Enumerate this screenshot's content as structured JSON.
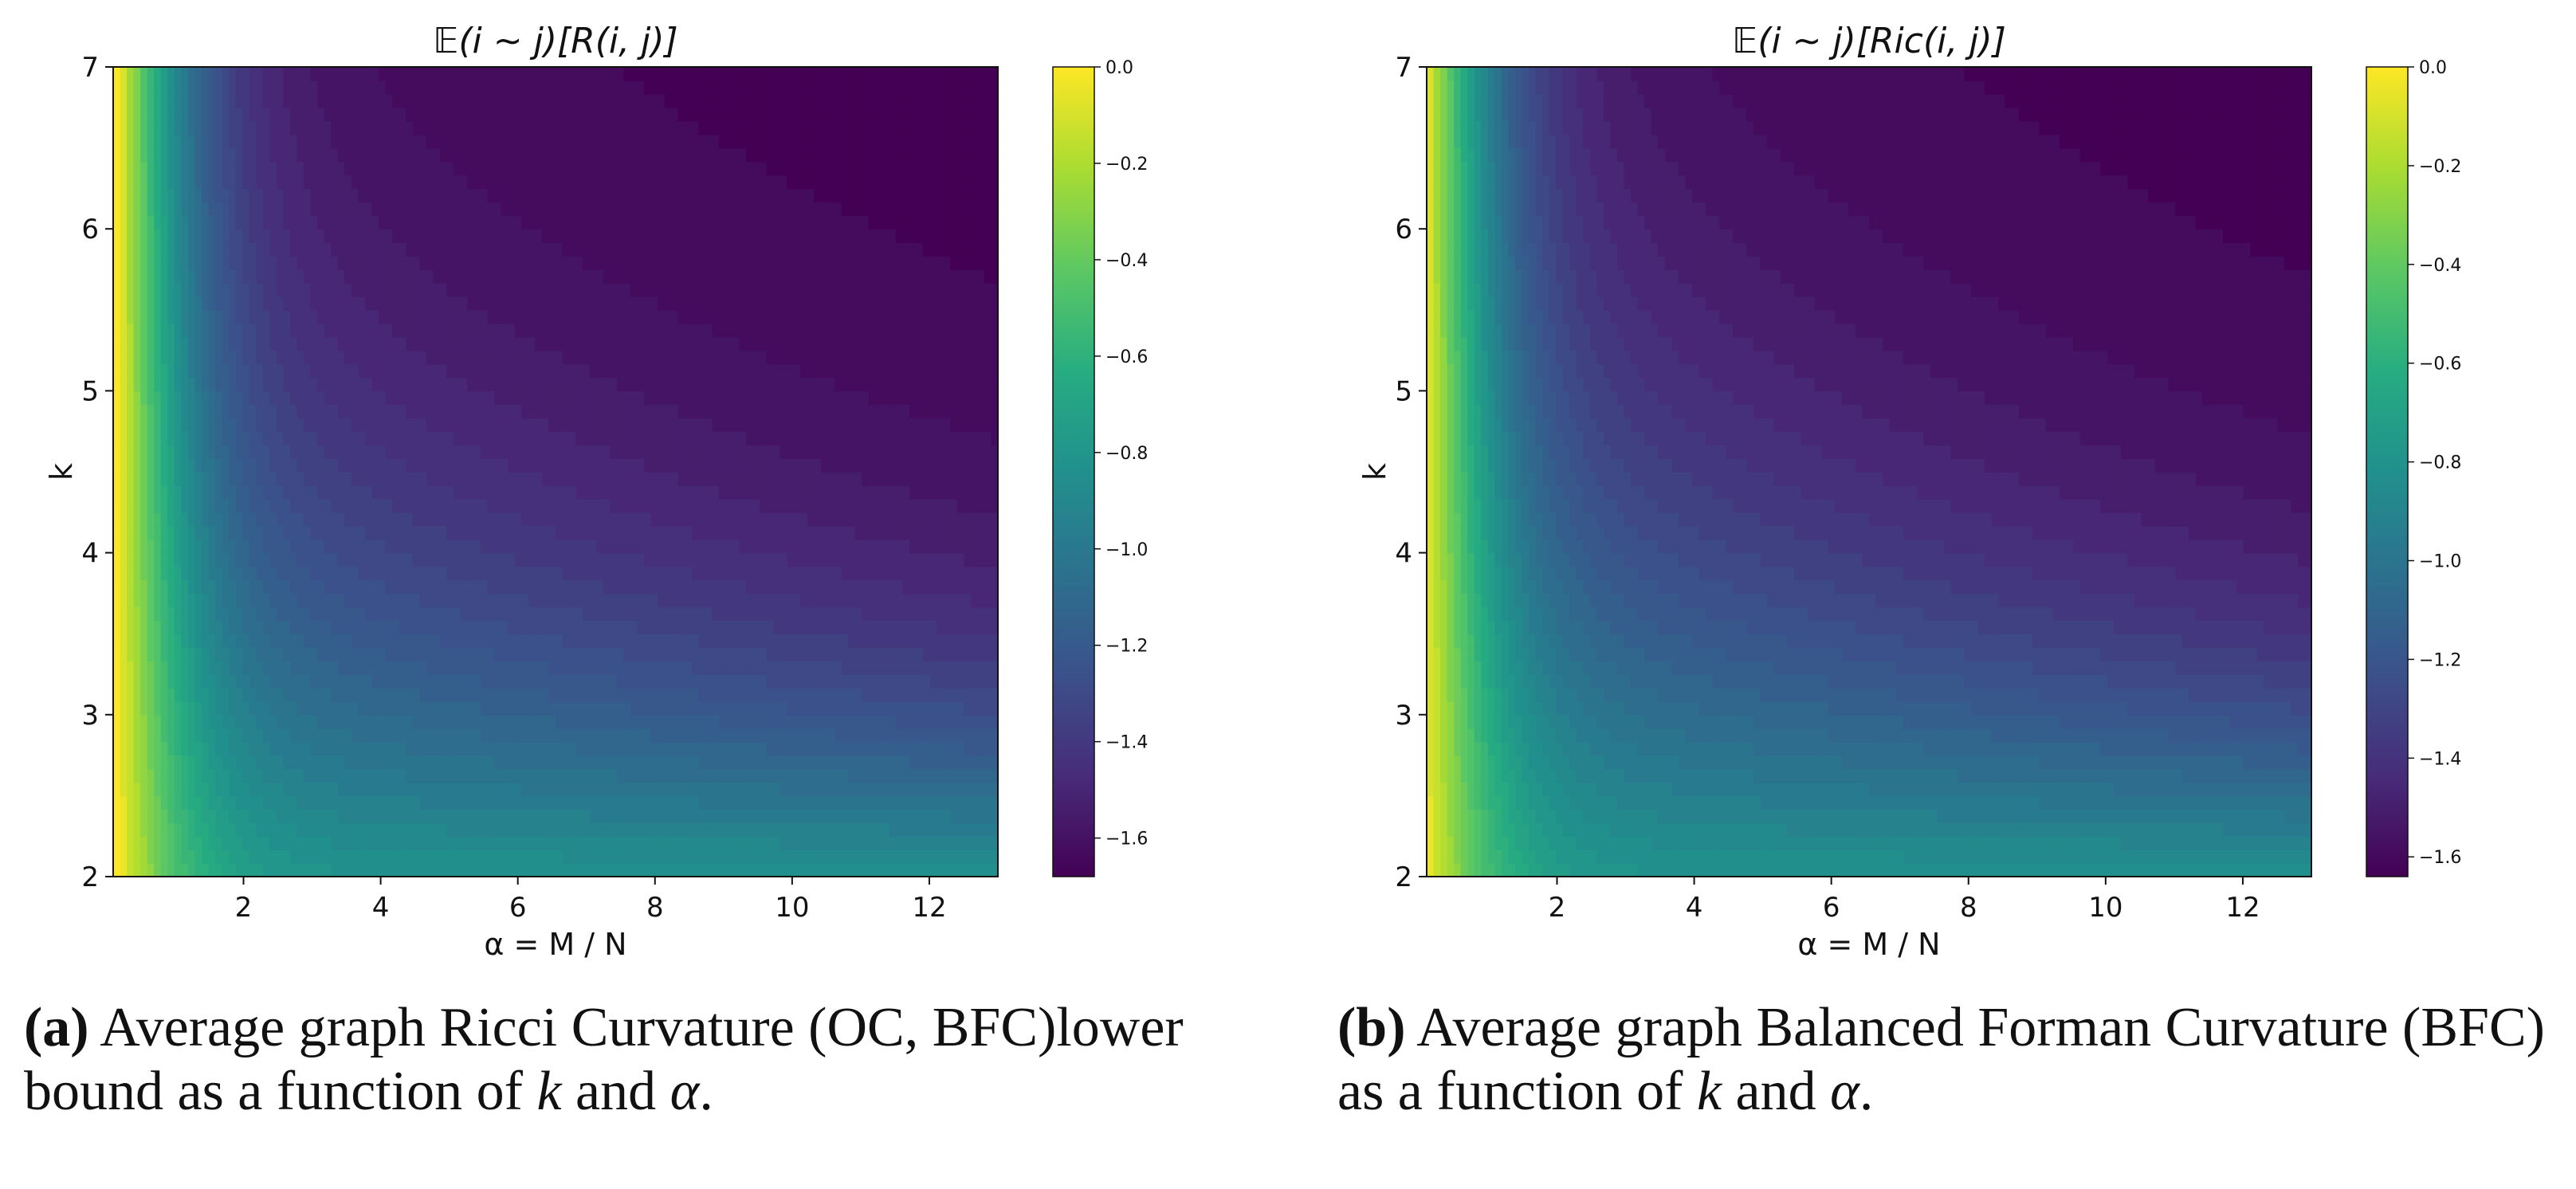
{
  "chart_data": [
    {
      "type": "heatmap",
      "panel": "a",
      "title": "𝔼(i ∼ j)[R(i, j)]",
      "xlabel": "α = M / N",
      "ylabel": "k",
      "xlim": [
        0.1,
        13
      ],
      "ylim": [
        2,
        7
      ],
      "xticks": [
        2,
        4,
        6,
        8,
        10,
        12
      ],
      "yticks": [
        2,
        3,
        4,
        5,
        6,
        7
      ],
      "colorbar": {
        "colormap": "viridis",
        "range": [
          -1.68,
          0.0
        ],
        "ticks": [
          "0.0",
          "−0.2",
          "−0.4",
          "−0.6",
          "−0.8",
          "−1.0",
          "−1.2",
          "−1.4",
          "−1.6"
        ]
      },
      "caption": {
        "label": "(a)",
        "text": "Average graph Ricci Curvature (OC, BFC)lower bound as a function of",
        "var1": "k",
        "and": "and",
        "var2": "α",
        "end": "."
      },
      "model": {
        "min": -1.68,
        "k_scale": 5.0,
        "a_scale": 8.0,
        "alpha0": 0.15
      }
    },
    {
      "type": "heatmap",
      "panel": "b",
      "title": "𝔼(i ∼ j)[Ric(i, j)]",
      "xlabel": "α = M / N",
      "ylabel": "k",
      "xlim": [
        0.1,
        13
      ],
      "ylim": [
        2,
        7
      ],
      "xticks": [
        2,
        4,
        6,
        8,
        10,
        12
      ],
      "yticks": [
        2,
        3,
        4,
        5,
        6,
        7
      ],
      "colorbar": {
        "colormap": "viridis",
        "range": [
          -1.64,
          0.0
        ],
        "ticks": [
          "0.0",
          "−0.2",
          "−0.4",
          "−0.6",
          "−0.8",
          "−1.0",
          "−1.2",
          "−1.4",
          "−1.6"
        ]
      },
      "caption": {
        "label": "(b)",
        "text": "Average graph Balanced Forman Curvature (BFC) as a function of",
        "var1": "k",
        "and": "and",
        "var2": "α",
        "end": "."
      },
      "model": {
        "min": -1.64,
        "k_scale": 5.5,
        "a_scale": 7.0,
        "alpha0": 0.05
      }
    }
  ]
}
